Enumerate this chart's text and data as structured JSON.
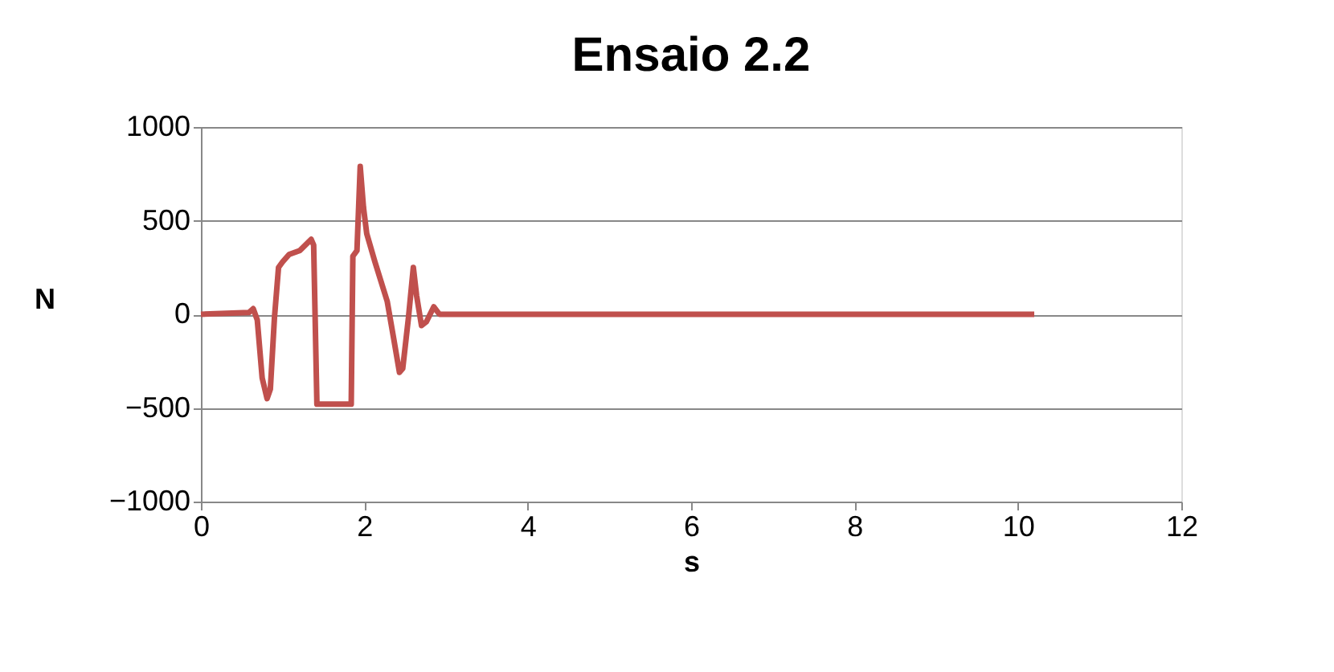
{
  "chart_data": {
    "type": "line",
    "title": "Ensaio 2.2",
    "xlabel": "s",
    "ylabel": "N",
    "xlim": [
      0,
      12
    ],
    "xticks": [
      0,
      2,
      4,
      6,
      8,
      10,
      12
    ],
    "ylim": [
      -1000,
      1000
    ],
    "yticks": [
      -1000,
      -500,
      0,
      500,
      1000
    ],
    "grid": "y",
    "marker": "none",
    "line_style": "solid",
    "series": [
      {
        "color": "#c0504d",
        "x": [
          0,
          0.59,
          0.64,
          0.69,
          0.75,
          0.81,
          0.85,
          0.9,
          0.95,
          1.0,
          1.08,
          1.21,
          1.28,
          1.35,
          1.38,
          1.42,
          1.84,
          1.86,
          1.91,
          1.95,
          1.99,
          2.03,
          2.13,
          2.28,
          2.36,
          2.43,
          2.47,
          2.54,
          2.6,
          2.64,
          2.7,
          2.76,
          2.85,
          2.92,
          3.4,
          4,
          5,
          6,
          7,
          8,
          9,
          10,
          10.2
        ],
        "values": [
          0,
          10,
          30,
          -30,
          -340,
          -450,
          -400,
          -20,
          250,
          280,
          320,
          340,
          370,
          400,
          370,
          -480,
          -480,
          310,
          340,
          790,
          570,
          430,
          280,
          70,
          -130,
          -310,
          -290,
          -20,
          250,
          100,
          -60,
          -40,
          40,
          0,
          0,
          0,
          0,
          0,
          0,
          0,
          0,
          0,
          0
        ]
      }
    ]
  }
}
